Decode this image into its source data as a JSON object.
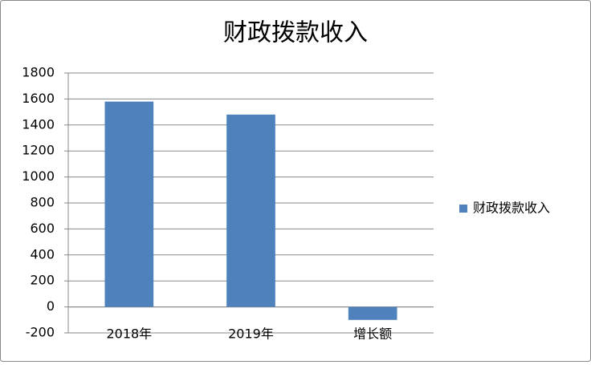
{
  "chart_data": {
    "type": "bar",
    "title": "财政拨款收入",
    "categories": [
      "2018年",
      "2019年",
      "增长额"
    ],
    "series": [
      {
        "name": "财政拨款收入",
        "color": "#4f81bd",
        "values": [
          1580,
          1480,
          -100
        ]
      }
    ],
    "ylim": [
      -200,
      1800
    ],
    "yticks": [
      -200,
      0,
      200,
      400,
      600,
      800,
      1000,
      1200,
      1400,
      1600,
      1800
    ],
    "grid": true,
    "legend": "right"
  }
}
